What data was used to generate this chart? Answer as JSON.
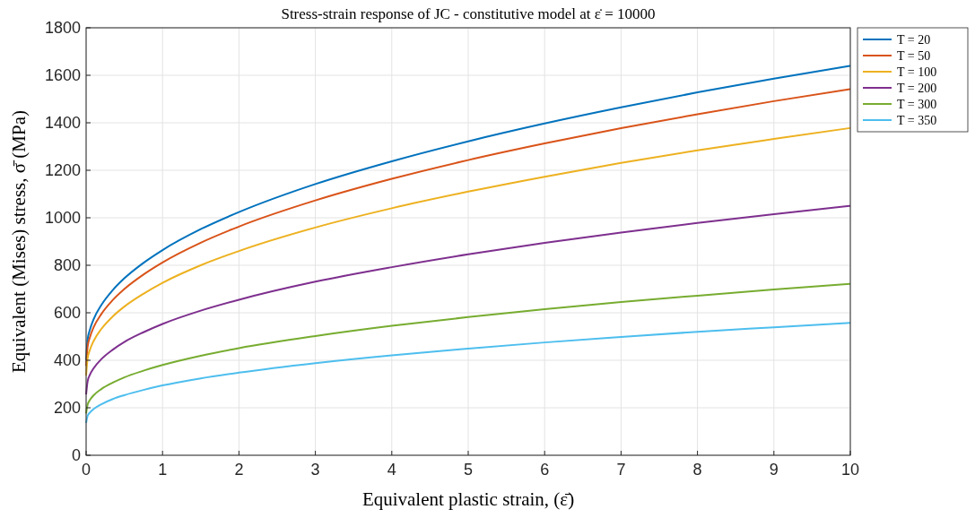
{
  "chart_data": {
    "type": "line",
    "title": "Stress-strain response of JC - constitutive model at ε̇ = 10000",
    "xlabel": "Equivalent plastic strain, (ε̄)",
    "ylabel": "Equivalent (Mises) stress, σ̄ (MPa)",
    "x": [
      0,
      0.02,
      0.05,
      0.1,
      0.2,
      0.35,
      0.5,
      0.75,
      1,
      1.5,
      2,
      3,
      4,
      5,
      6,
      7,
      8,
      9,
      10
    ],
    "series": [
      {
        "name": "T = 20",
        "color": "#0072bd",
        "values": [
          400,
          487,
          529,
          574,
          633,
          696,
          745,
          810,
          864,
          952,
          1024,
          1142,
          1238,
          1322,
          1397,
          1465,
          1528,
          1586,
          1640
        ]
      },
      {
        "name": "T = 50",
        "color": "#d95319",
        "values": [
          376,
          458,
          497,
          540,
          595,
          654,
          700,
          761,
          812,
          895,
          963,
          1073,
          1164,
          1243,
          1313,
          1377,
          1436,
          1491,
          1542
        ]
      },
      {
        "name": "T = 100",
        "color": "#edb120",
        "values": [
          336,
          409,
          444,
          482,
          532,
          585,
          626,
          680,
          726,
          800,
          860,
          959,
          1040,
          1110,
          1173,
          1231,
          1284,
          1332,
          1378
        ]
      },
      {
        "name": "T = 200",
        "color": "#7e2f8e",
        "values": [
          256,
          312,
          339,
          367,
          405,
          445,
          477,
          518,
          553,
          609,
          655,
          731,
          792,
          846,
          894,
          938,
          978,
          1015,
          1050
        ]
      },
      {
        "name": "T = 300",
        "color": "#77ac30",
        "values": [
          176,
          214,
          233,
          253,
          279,
          306,
          328,
          356,
          380,
          419,
          451,
          502,
          545,
          582,
          615,
          645,
          672,
          698,
          722
        ]
      },
      {
        "name": "T = 350",
        "color": "#4dbeee",
        "values": [
          136,
          166,
          180,
          195,
          215,
          237,
          253,
          275,
          294,
          324,
          348,
          388,
          421,
          449,
          475,
          498,
          520,
          539,
          558
        ]
      }
    ],
    "xlim": [
      0,
      10
    ],
    "xticks": [
      0,
      1,
      2,
      3,
      4,
      5,
      6,
      7,
      8,
      9,
      10
    ],
    "ylim": [
      0,
      1800
    ],
    "yticks": [
      0,
      200,
      400,
      600,
      800,
      1000,
      1200,
      1400,
      1600,
      1800
    ],
    "grid": true,
    "legend": "top right",
    "marker": "none",
    "line_style": "solid"
  }
}
